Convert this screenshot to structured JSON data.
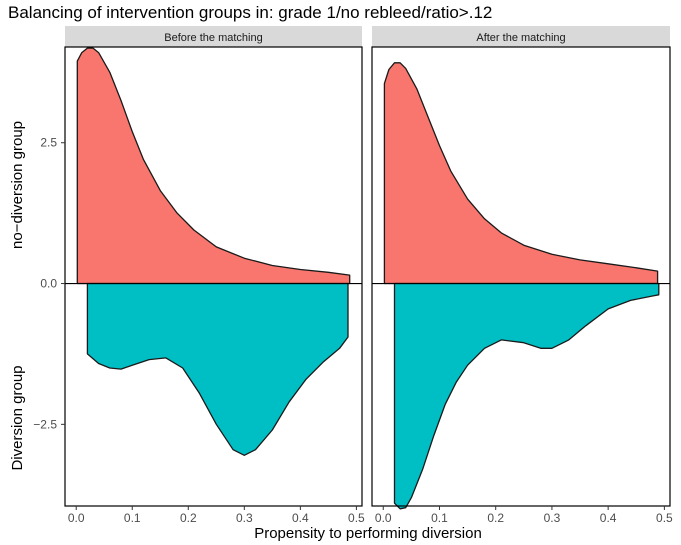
{
  "chart_data": {
    "type": "area",
    "title": "Balancing of intervention groups in: grade 1/no rebleed/ratio>.12",
    "xlabel": "Propensity to performing diversion",
    "ylabel_top": "no−diversion group",
    "ylabel_bottom": "Diversion group",
    "xlim": [
      -0.02,
      0.51
    ],
    "ylim": [
      -3.95,
      4.2
    ],
    "x_ticks": [
      0.0,
      0.1,
      0.2,
      0.3,
      0.4,
      0.5
    ],
    "x_tick_labels": [
      "0.0",
      "0.1",
      "0.2",
      "0.3",
      "0.4",
      "0.5"
    ],
    "y_ticks": [
      2.5,
      0.0,
      -2.5
    ],
    "y_tick_labels": [
      "2.5",
      "0.0",
      "−2.5"
    ],
    "grid": false,
    "colors": {
      "no_diversion": "#F8766D",
      "diversion": "#00BFC4",
      "strip": "#d9d9d9"
    },
    "panels": [
      {
        "strip_label": "Before the matching",
        "series": [
          {
            "name": "no-diversion group",
            "x": [
              0.002,
              0.01,
              0.02,
              0.03,
              0.04,
              0.06,
              0.08,
              0.1,
              0.12,
              0.15,
              0.18,
              0.21,
              0.25,
              0.3,
              0.35,
              0.4,
              0.45,
              0.488
            ],
            "y": [
              3.95,
              4.1,
              4.18,
              4.18,
              4.1,
              3.75,
              3.25,
              2.7,
              2.2,
              1.65,
              1.25,
              0.95,
              0.65,
              0.45,
              0.32,
              0.25,
              0.2,
              0.15
            ]
          },
          {
            "name": "Diversion group",
            "x": [
              0.02,
              0.04,
              0.06,
              0.08,
              0.1,
              0.13,
              0.16,
              0.19,
              0.22,
              0.25,
              0.28,
              0.3,
              0.32,
              0.35,
              0.38,
              0.41,
              0.44,
              0.47,
              0.485
            ],
            "y": [
              -1.25,
              -1.42,
              -1.5,
              -1.52,
              -1.45,
              -1.35,
              -1.32,
              -1.5,
              -1.95,
              -2.5,
              -2.95,
              -3.05,
              -2.95,
              -2.6,
              -2.1,
              -1.7,
              -1.4,
              -1.15,
              -0.95
            ]
          }
        ]
      },
      {
        "strip_label": "After the matching",
        "series": [
          {
            "name": "no-diversion group",
            "x": [
              0.002,
              0.01,
              0.02,
              0.03,
              0.04,
              0.06,
              0.08,
              0.1,
              0.12,
              0.15,
              0.18,
              0.21,
              0.25,
              0.3,
              0.35,
              0.4,
              0.45,
              0.488
            ],
            "y": [
              3.55,
              3.8,
              3.92,
              3.92,
              3.82,
              3.45,
              2.95,
              2.45,
              2.0,
              1.5,
              1.15,
              0.9,
              0.68,
              0.52,
              0.42,
              0.35,
              0.28,
              0.22
            ]
          },
          {
            "name": "Diversion group",
            "x": [
              0.02,
              0.03,
              0.04,
              0.05,
              0.07,
              0.09,
              0.11,
              0.13,
              0.15,
              0.18,
              0.21,
              0.25,
              0.28,
              0.3,
              0.33,
              0.36,
              0.4,
              0.44,
              0.48,
              0.49
            ],
            "y": [
              -3.9,
              -4.0,
              -3.98,
              -3.8,
              -3.3,
              -2.7,
              -2.15,
              -1.75,
              -1.45,
              -1.15,
              -1.0,
              -1.05,
              -1.15,
              -1.15,
              -1.0,
              -0.75,
              -0.45,
              -0.3,
              -0.22,
              -0.2
            ]
          }
        ]
      }
    ]
  }
}
